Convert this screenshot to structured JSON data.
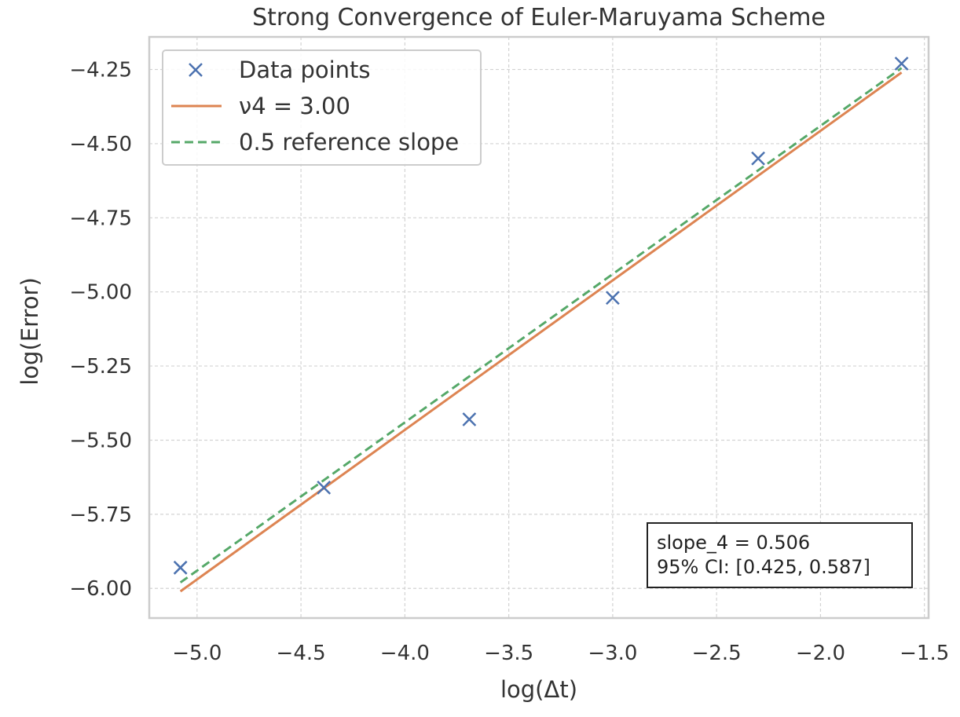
{
  "chart_data": {
    "type": "line",
    "title": "Strong Convergence of Euler-Maruyama Scheme",
    "xlabel": "log(Δt)",
    "ylabel": "log(Error)",
    "xlim": [
      -5.23,
      -1.48
    ],
    "ylim": [
      -6.1,
      -4.14
    ],
    "grid": true,
    "legend_position": "top-left",
    "x_ticks": [
      -5.0,
      -4.5,
      -4.0,
      -3.5,
      -3.0,
      -2.5,
      -2.0,
      -1.5
    ],
    "x_tick_labels": [
      "−5.0",
      "−4.5",
      "−4.0",
      "−3.5",
      "−3.0",
      "−2.5",
      "−2.0",
      "−1.5"
    ],
    "y_ticks": [
      -4.25,
      -4.5,
      -4.75,
      -5.0,
      -5.25,
      -5.5,
      -5.75,
      -6.0
    ],
    "y_tick_labels": [
      "−4.25",
      "−4.50",
      "−4.75",
      "−5.00",
      "−5.25",
      "−5.50",
      "−5.75",
      "−6.00"
    ],
    "series": [
      {
        "name": "Data points",
        "kind": "scatter",
        "marker": "x",
        "color": "#4c72b0",
        "x": [
          -5.08,
          -4.39,
          -3.69,
          -3.0,
          -2.3,
          -1.61
        ],
        "y": [
          -5.93,
          -5.66,
          -5.43,
          -5.02,
          -4.55,
          -4.23
        ]
      },
      {
        "name": "ν4 = 3.00",
        "kind": "line",
        "color": "#dd8452",
        "x": [
          -5.08,
          -1.61
        ],
        "y": [
          -6.01,
          -4.26
        ]
      },
      {
        "name": "0.5 reference slope",
        "kind": "dashed-line",
        "color": "#55a868",
        "x": [
          -5.08,
          -1.61
        ],
        "y": [
          -5.98,
          -4.245
        ]
      }
    ],
    "annotation": {
      "line1": "slope_4 = 0.506",
      "line2": "95% CI: [0.425, 0.587]",
      "position": "bottom-right"
    }
  }
}
